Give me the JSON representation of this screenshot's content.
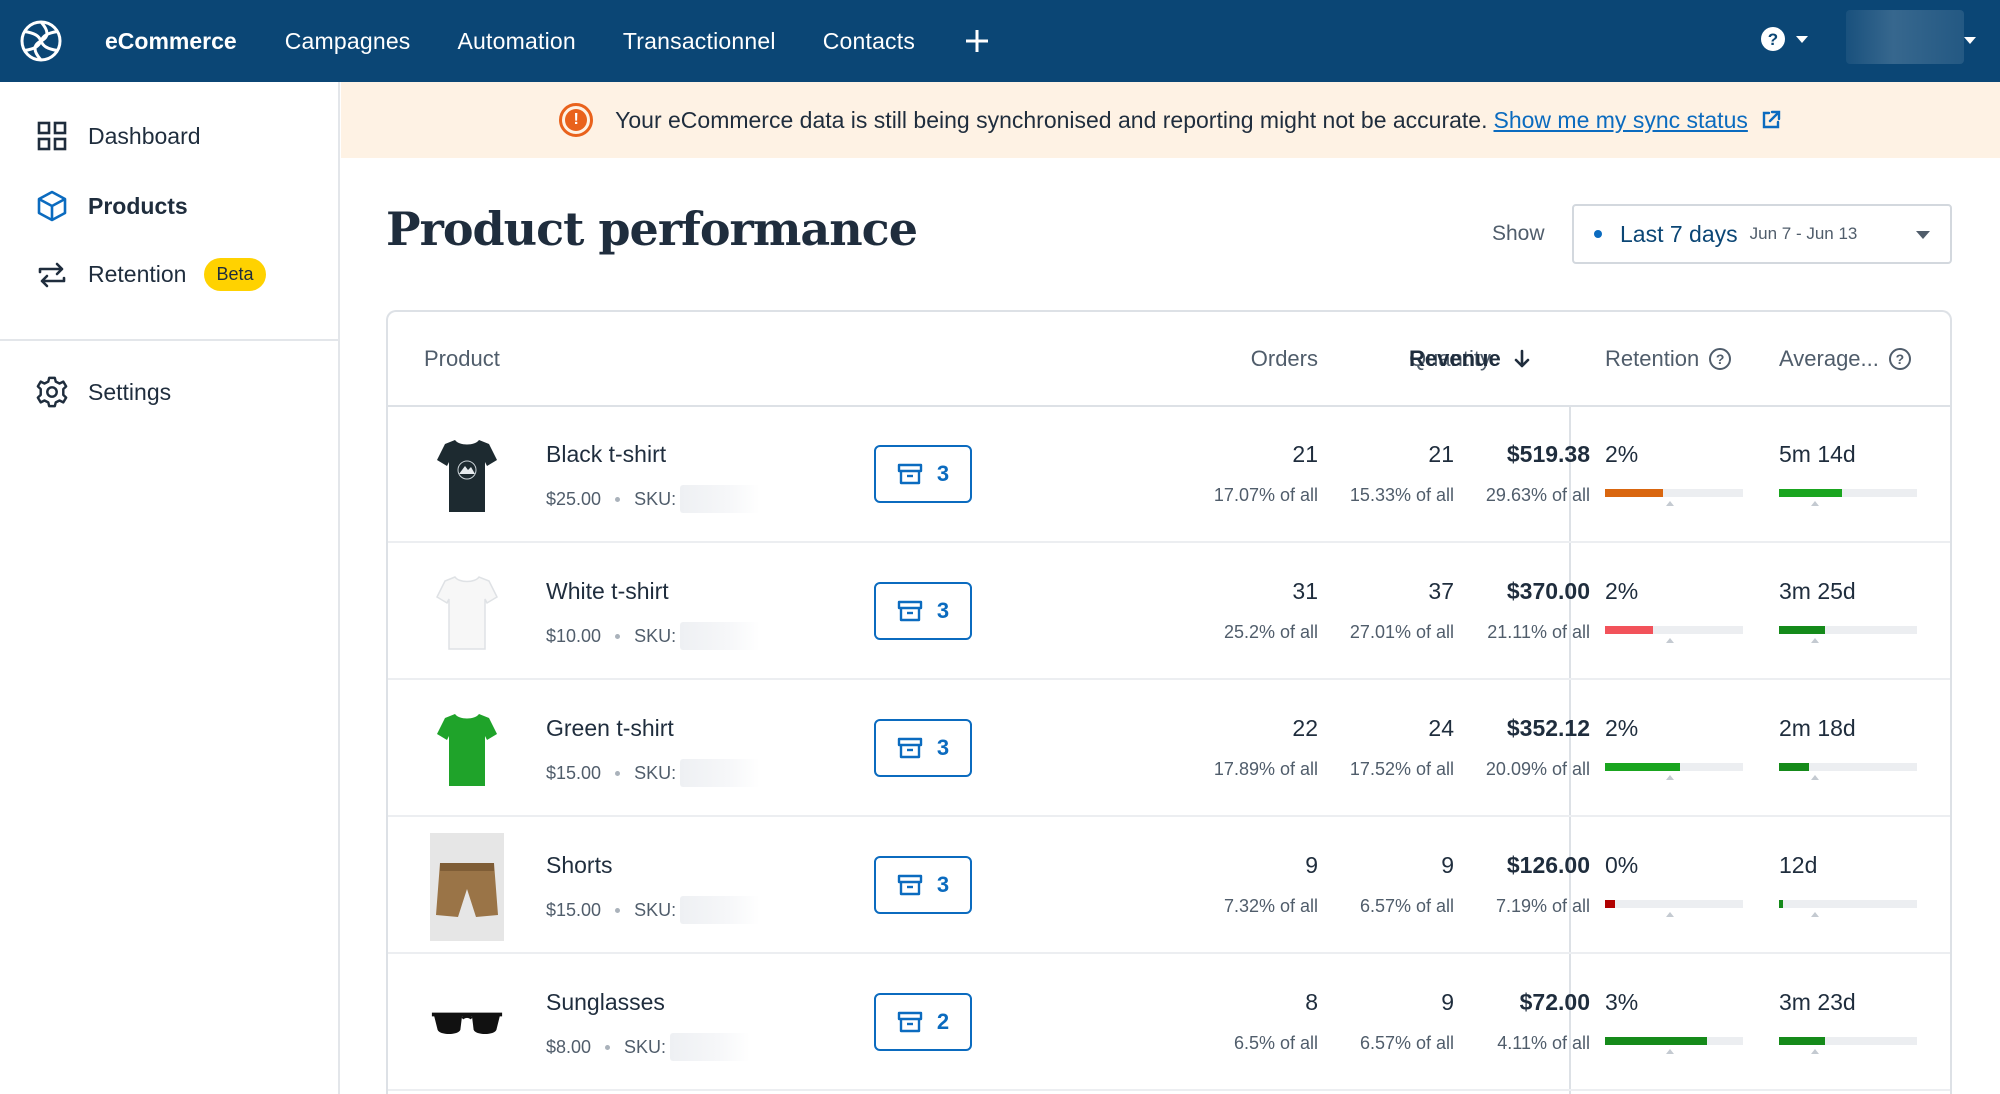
{
  "nav": {
    "brand": "eCommerce",
    "links": [
      "Campagnes",
      "Automation",
      "Transactionnel",
      "Contacts"
    ]
  },
  "sidebar": {
    "items": [
      {
        "label": "Dashboard",
        "icon": "grid-icon"
      },
      {
        "label": "Products",
        "icon": "box-icon"
      },
      {
        "label": "Retention",
        "icon": "repeat-icon",
        "badge": "Beta"
      },
      {
        "label": "Settings",
        "icon": "gear-icon"
      }
    ]
  },
  "banner": {
    "text": "Your eCommerce data is still being synchronised and reporting might not be accurate.",
    "link": "Show me my sync status"
  },
  "page": {
    "title": "Product performance",
    "show_label": "Show",
    "date_range": "Last 7 days",
    "date_sub": "Jun 7 - Jun 13"
  },
  "table": {
    "headers": {
      "product": "Product",
      "orders": "Orders",
      "quantity": "Quantity",
      "revenue": "Revenue",
      "retention": "Retention",
      "average": "Average..."
    },
    "sku_label": "SKU:",
    "rows": [
      {
        "name": "Black t-shirt",
        "price": "$25.00",
        "count": "3",
        "orders": "21",
        "orders_pct": "17.07% of all",
        "qty": "21",
        "qty_pct": "15.33% of all",
        "revenue": "$519.38",
        "revenue_pct": "29.63% of all",
        "retention": "2%",
        "retention_level": 0.42,
        "retention_color": "#d9660f",
        "average": "5m 14d",
        "average_level": 0.46,
        "average_color": "#1aa51f"
      },
      {
        "name": "White t-shirt",
        "price": "$10.00",
        "count": "3",
        "orders": "31",
        "orders_pct": "25.2% of all",
        "qty": "37",
        "qty_pct": "27.01% of all",
        "revenue": "$370.00",
        "revenue_pct": "21.11% of all",
        "retention": "2%",
        "retention_level": 0.35,
        "retention_color": "#f2525a",
        "average": "3m 25d",
        "average_level": 0.33,
        "average_color": "#158a1a"
      },
      {
        "name": "Green t-shirt",
        "price": "$15.00",
        "count": "3",
        "orders": "22",
        "orders_pct": "17.89% of all",
        "qty": "24",
        "qty_pct": "17.52% of all",
        "revenue": "$352.12",
        "revenue_pct": "20.09% of all",
        "retention": "2%",
        "retention_level": 0.54,
        "retention_color": "#1aa51f",
        "average": "2m 18d",
        "average_level": 0.22,
        "average_color": "#158a1a"
      },
      {
        "name": "Shorts",
        "price": "$15.00",
        "count": "3",
        "orders": "9",
        "orders_pct": "7.32% of all",
        "qty": "9",
        "qty_pct": "6.57% of all",
        "revenue": "$126.00",
        "revenue_pct": "7.19% of all",
        "retention": "0%",
        "retention_level": 0.07,
        "retention_color": "#b00000",
        "average": "12d",
        "average_level": 0.03,
        "average_color": "#158a1a"
      },
      {
        "name": "Sunglasses",
        "price": "$8.00",
        "count": "2",
        "orders": "8",
        "orders_pct": "6.5% of all",
        "qty": "9",
        "qty_pct": "6.57% of all",
        "revenue": "$72.00",
        "revenue_pct": "4.11% of all",
        "retention": "3%",
        "retention_level": 0.74,
        "retention_color": "#158a1a",
        "average": "3m 23d",
        "average_level": 0.33,
        "average_color": "#158a1a"
      }
    ]
  }
}
